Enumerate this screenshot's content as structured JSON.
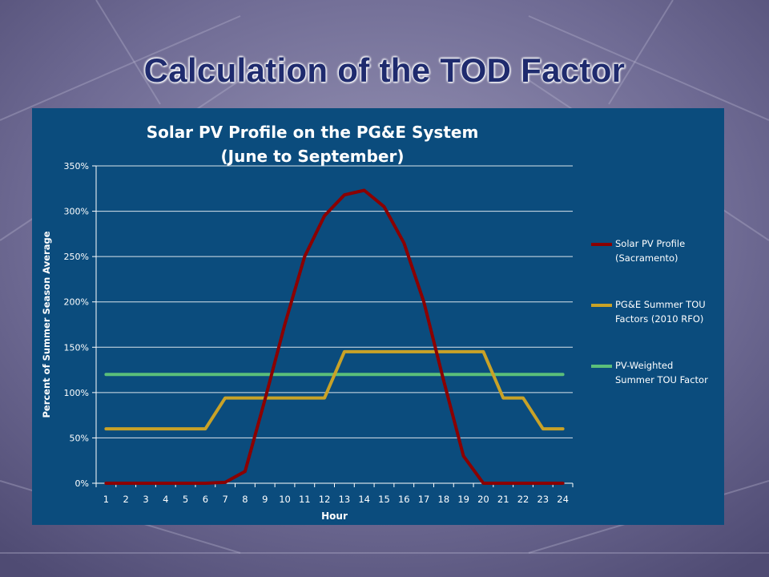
{
  "slide": {
    "title": "Calculation of the TOD Factor"
  },
  "chart_data": {
    "type": "line",
    "title_line1": "Solar PV Profile on the PG&E System",
    "title_line2": "(June to September)",
    "xlabel": "Hour",
    "ylabel": "Percent of Summer Season Average",
    "x": [
      1,
      2,
      3,
      4,
      5,
      6,
      7,
      8,
      9,
      10,
      11,
      12,
      13,
      14,
      15,
      16,
      17,
      18,
      19,
      20,
      21,
      22,
      23,
      24
    ],
    "ylim": [
      0,
      350
    ],
    "yticks": [
      "0%",
      "50%",
      "100%",
      "150%",
      "200%",
      "250%",
      "300%",
      "350%"
    ],
    "grid": true,
    "legend_position": "right",
    "series": [
      {
        "name": "Solar PV Profile (Sacramento)",
        "label_lines": [
          "Solar PV Profile",
          "(Sacramento)"
        ],
        "color": "#8b0000",
        "values": [
          0,
          0,
          0,
          0,
          0,
          0,
          1,
          13,
          92,
          175,
          250,
          295,
          318,
          323,
          305,
          265,
          200,
          113,
          30,
          0,
          0,
          0,
          0,
          0
        ]
      },
      {
        "name": "PG&E Summer TOU Factors (2010 RFO)",
        "label_lines": [
          "PG&E Summer TOU",
          "Factors (2010 RFO)"
        ],
        "color": "#c9a227",
        "values": [
          60,
          60,
          60,
          60,
          60,
          60,
          94,
          94,
          94,
          94,
          94,
          94,
          145,
          145,
          145,
          145,
          145,
          145,
          145,
          145,
          94,
          94,
          60,
          60
        ]
      },
      {
        "name": "PV-Weighted Summer TOU Factor",
        "label_lines": [
          "PV-Weighted",
          "Summer TOU Factor"
        ],
        "color": "#5bbf7a",
        "values": [
          120,
          120,
          120,
          120,
          120,
          120,
          120,
          120,
          120,
          120,
          120,
          120,
          120,
          120,
          120,
          120,
          120,
          120,
          120,
          120,
          120,
          120,
          120,
          120
        ]
      }
    ]
  }
}
